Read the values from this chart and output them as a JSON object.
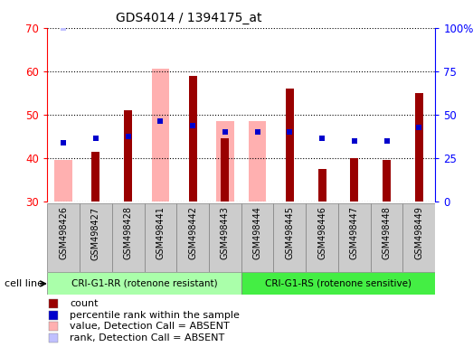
{
  "title": "GDS4014 / 1394175_at",
  "samples": [
    "GSM498426",
    "GSM498427",
    "GSM498428",
    "GSM498441",
    "GSM498442",
    "GSM498443",
    "GSM498444",
    "GSM498445",
    "GSM498446",
    "GSM498447",
    "GSM498448",
    "GSM498449"
  ],
  "count_values": [
    null,
    41.5,
    51.0,
    null,
    59.0,
    44.5,
    null,
    56.0,
    37.5,
    40.0,
    39.5,
    55.0
  ],
  "rank_values": [
    43.5,
    44.5,
    45.0,
    48.5,
    47.5,
    46.0,
    46.0,
    46.0,
    44.5,
    44.0,
    44.0,
    47.0
  ],
  "absent_value_values": [
    39.5,
    null,
    null,
    60.5,
    null,
    48.5,
    48.5,
    null,
    null,
    null,
    null,
    null
  ],
  "absent_rank_values": [
    44.0,
    null,
    null,
    null,
    null,
    null,
    null,
    null,
    null,
    null,
    null,
    null
  ],
  "ylim_left": [
    30,
    70
  ],
  "ylim_right": [
    0,
    100
  ],
  "yticks_left": [
    30,
    40,
    50,
    60,
    70
  ],
  "yticks_right": [
    0,
    25,
    50,
    75,
    100
  ],
  "groups": [
    {
      "label": "CRI-G1-RR (rotenone resistant)",
      "n": 6,
      "color": "#aaffaa"
    },
    {
      "label": "CRI-G1-RS (rotenone sensitive)",
      "n": 6,
      "color": "#44ee44"
    }
  ],
  "cell_line_label": "cell line",
  "count_color": "#990000",
  "rank_color": "#0000cc",
  "absent_value_color": "#ffb0b0",
  "absent_rank_color": "#c0c0ff",
  "bg_color": "#cccccc",
  "plot_bg": "#ffffff",
  "legend_items": [
    {
      "label": "count",
      "color": "#990000"
    },
    {
      "label": "percentile rank within the sample",
      "color": "#0000cc"
    },
    {
      "label": "value, Detection Call = ABSENT",
      "color": "#ffb0b0"
    },
    {
      "label": "rank, Detection Call = ABSENT",
      "color": "#c0c0ff"
    }
  ]
}
